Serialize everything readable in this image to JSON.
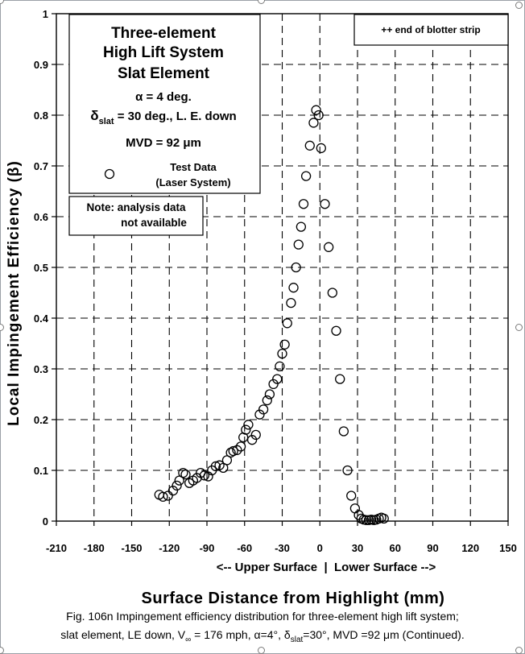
{
  "chart_data": {
    "type": "scatter",
    "xlabel": "Surface Distance from Highlight (mm)",
    "ylabel": "Local Impingement Efficiency (β)",
    "xlim": [
      -210,
      150
    ],
    "ylim": [
      0,
      1
    ],
    "x_ticks": [
      -210,
      -180,
      -150,
      -120,
      -90,
      -60,
      -30,
      0,
      30,
      60,
      90,
      120,
      150
    ],
    "y_ticks": [
      0,
      0.1,
      0.2,
      0.3,
      0.4,
      0.5,
      0.6,
      0.7,
      0.8,
      0.9,
      1
    ],
    "y_tick_labels": [
      "0",
      "0.1",
      "0.2",
      "0.3",
      "0.4",
      "0.5",
      "0.6",
      "0.7",
      "0.8",
      "0.9",
      "1"
    ],
    "grid": true,
    "surface_label": "<-- Upper Surface  |  Lower Surface -->",
    "blotter_note": "++ end of blotter strip",
    "title_box": {
      "title_lines": [
        "Three-element",
        "High Lift System",
        "Slat Element"
      ],
      "alpha_label": "α = 4 deg.",
      "delta_symbol": "δ",
      "delta_sub": "slat",
      "delta_rest": " = 30 deg., L. E. down",
      "mvd_label": "MVD = 92 μm",
      "legend_line1": "Test Data",
      "legend_line2": "(Laser System)"
    },
    "note_box": {
      "line1": "Note: analysis data",
      "line2": "not available"
    },
    "series": [
      {
        "name": "Test Data (Laser System)",
        "marker": "open-circle",
        "x": [
          -128,
          -125,
          -121,
          -117,
          -114,
          -112,
          -109,
          -107,
          -104,
          -101,
          -98,
          -95,
          -92,
          -89,
          -86,
          -83,
          -80,
          -77,
          -74,
          -71,
          -69,
          -66,
          -63,
          -61,
          -59,
          -57,
          -54,
          -51,
          -48,
          -45,
          -42,
          -40,
          -37,
          -34,
          -32,
          -30,
          -28,
          -26,
          -23,
          -21,
          -19,
          -17,
          -15,
          -13,
          -11,
          -8,
          -5,
          -3,
          -1,
          1,
          4,
          7,
          10,
          13,
          16,
          19,
          22,
          25,
          28,
          31,
          33,
          35,
          37,
          39,
          41,
          43,
          45,
          47,
          49,
          51
        ],
        "y": [
          0.052,
          0.048,
          0.05,
          0.06,
          0.07,
          0.08,
          0.095,
          0.092,
          0.075,
          0.08,
          0.085,
          0.095,
          0.09,
          0.088,
          0.1,
          0.108,
          0.11,
          0.105,
          0.12,
          0.135,
          0.138,
          0.14,
          0.147,
          0.165,
          0.18,
          0.19,
          0.16,
          0.17,
          0.21,
          0.22,
          0.238,
          0.25,
          0.27,
          0.28,
          0.305,
          0.33,
          0.348,
          0.39,
          0.43,
          0.46,
          0.5,
          0.545,
          0.58,
          0.625,
          0.68,
          0.74,
          0.785,
          0.81,
          0.8,
          0.735,
          0.625,
          0.54,
          0.45,
          0.375,
          0.28,
          0.177,
          0.1,
          0.05,
          0.025,
          0.012,
          0.005,
          0.003,
          0.002,
          0.002,
          0.003,
          0.002,
          0.003,
          0.005,
          0.007,
          0.005
        ]
      }
    ]
  },
  "caption": {
    "line1": "Fig. 106n  Impingement efficiency distribution for three-element high lift system;",
    "line2_a": "slat element, LE down, V",
    "line2_inf": "∞",
    "line2_b": " = 176 mph, α=4°, δ",
    "line2_sub": "slat",
    "line2_c": "=30°,  MVD =92 μm (Continued)."
  }
}
